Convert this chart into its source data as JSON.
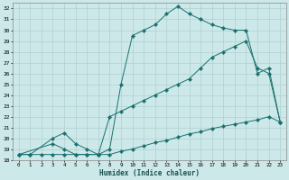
{
  "xlabel": "Humidex (Indice chaleur)",
  "bg_color": "#cde8e8",
  "grid_color": "#afd0d0",
  "line_color": "#1a7070",
  "xlim": [
    -0.5,
    23.5
  ],
  "ylim": [
    18,
    32.5
  ],
  "xticks": [
    0,
    1,
    2,
    3,
    4,
    5,
    6,
    7,
    8,
    9,
    10,
    11,
    12,
    13,
    14,
    15,
    16,
    17,
    18,
    19,
    20,
    21,
    22,
    23
  ],
  "yticks": [
    18,
    19,
    20,
    21,
    22,
    23,
    24,
    25,
    26,
    27,
    28,
    29,
    30,
    31,
    32
  ],
  "series": [
    {
      "x": [
        0,
        1,
        3,
        4,
        5,
        6,
        7,
        8,
        9,
        10,
        11,
        12,
        13,
        14,
        15,
        16,
        17,
        18,
        19,
        20,
        21,
        22,
        23
      ],
      "y": [
        18.5,
        18.5,
        20.0,
        20.5,
        19.5,
        19.0,
        18.5,
        19.0,
        25.0,
        29.5,
        30.0,
        30.5,
        31.5,
        32.2,
        31.5,
        31.0,
        30.5,
        30.2,
        30.0,
        30.0,
        26.0,
        26.5,
        21.5
      ]
    },
    {
      "x": [
        0,
        3,
        4,
        5,
        6,
        7,
        8,
        9,
        10,
        11,
        12,
        13,
        14,
        15,
        16,
        17,
        18,
        19,
        20,
        21,
        22,
        23
      ],
      "y": [
        18.5,
        19.5,
        19.0,
        18.5,
        18.5,
        18.5,
        22.0,
        22.5,
        23.0,
        23.5,
        24.0,
        24.5,
        25.0,
        25.5,
        26.5,
        27.5,
        28.0,
        28.5,
        29.0,
        26.5,
        26.0,
        21.5
      ]
    },
    {
      "x": [
        0,
        1,
        2,
        3,
        4,
        5,
        6,
        7,
        8,
        9,
        10,
        11,
        12,
        13,
        14,
        15,
        16,
        17,
        18,
        19,
        20,
        21,
        22,
        23
      ],
      "y": [
        18.5,
        18.5,
        18.5,
        18.5,
        18.5,
        18.5,
        18.5,
        18.5,
        18.5,
        18.8,
        19.0,
        19.3,
        19.6,
        19.8,
        20.1,
        20.4,
        20.6,
        20.9,
        21.1,
        21.3,
        21.5,
        21.7,
        22.0,
        21.5
      ]
    }
  ]
}
